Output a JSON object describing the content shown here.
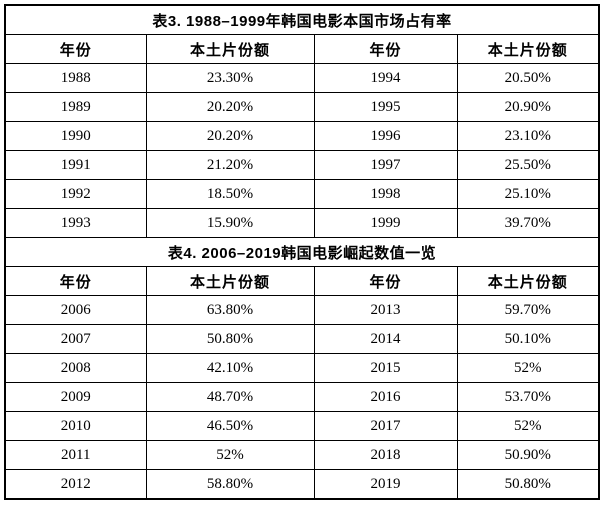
{
  "colors": {
    "background": "#ffffff",
    "border": "#000000",
    "text": "#000000"
  },
  "tables": [
    {
      "title": "表3. 1988–1999年韩国电影本国市场占有率",
      "headers": [
        "年份",
        "本土片份额",
        "年份",
        "本土片份额"
      ],
      "rows": [
        [
          "1988",
          "23.30%",
          "1994",
          "20.50%"
        ],
        [
          "1989",
          "20.20%",
          "1995",
          "20.90%"
        ],
        [
          "1990",
          "20.20%",
          "1996",
          "23.10%"
        ],
        [
          "1991",
          "21.20%",
          "1997",
          "25.50%"
        ],
        [
          "1992",
          "18.50%",
          "1998",
          "25.10%"
        ],
        [
          "1993",
          "15.90%",
          "1999",
          "39.70%"
        ]
      ]
    },
    {
      "title": "表4. 2006–2019韩国电影崛起数值一览",
      "headers": [
        "年份",
        "本土片份额",
        "年份",
        "本土片份额"
      ],
      "rows": [
        [
          "2006",
          "63.80%",
          "2013",
          "59.70%"
        ],
        [
          "2007",
          "50.80%",
          "2014",
          "50.10%"
        ],
        [
          "2008",
          "42.10%",
          "2015",
          "52%"
        ],
        [
          "2009",
          "48.70%",
          "2016",
          "53.70%"
        ],
        [
          "2010",
          "46.50%",
          "2017",
          "52%"
        ],
        [
          "2011",
          "52%",
          "2018",
          "50.90%"
        ],
        [
          "2012",
          "58.80%",
          "2019",
          "50.80%"
        ]
      ]
    }
  ]
}
